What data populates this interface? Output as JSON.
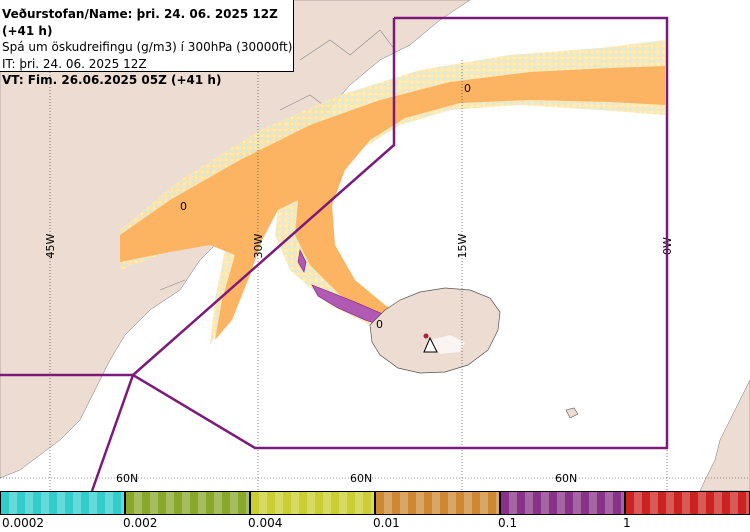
{
  "header": {
    "line1": "Veðurstofan/Name: þri. 24. 06. 2025 12Z (+41 h)",
    "line2": "Spá um öskudreifingu (g/m3) í 300hPa (30000ft)",
    "line3": "IT: þri. 24. 06. 2025 12Z",
    "line4": "VT: Fim. 26.06.2025 05Z (+41 h)"
  },
  "map": {
    "lon_labels": [
      "45W",
      "30W",
      "15W",
      "0W"
    ],
    "lat_labels": [
      "60N",
      "60N",
      "60N"
    ],
    "contour_labels": [
      "0",
      "0",
      "0"
    ],
    "volcano_marker": "volcano-icon"
  },
  "legend": {
    "labels": [
      "0.0002",
      "0.002",
      "0.004",
      "0.01",
      "0.1",
      "1"
    ],
    "colors": [
      "#33cccc",
      "#88a82a",
      "#cccc33",
      "#cc8833",
      "#883388",
      "#cc2222"
    ]
  },
  "colors": {
    "land": "#eddcd2",
    "sea": "#ffffff",
    "ash_light": "#fcd9a0",
    "ash_orange": "#fdb462",
    "ash_purple": "#b05ab4",
    "boundary": "#7b1a7b"
  }
}
